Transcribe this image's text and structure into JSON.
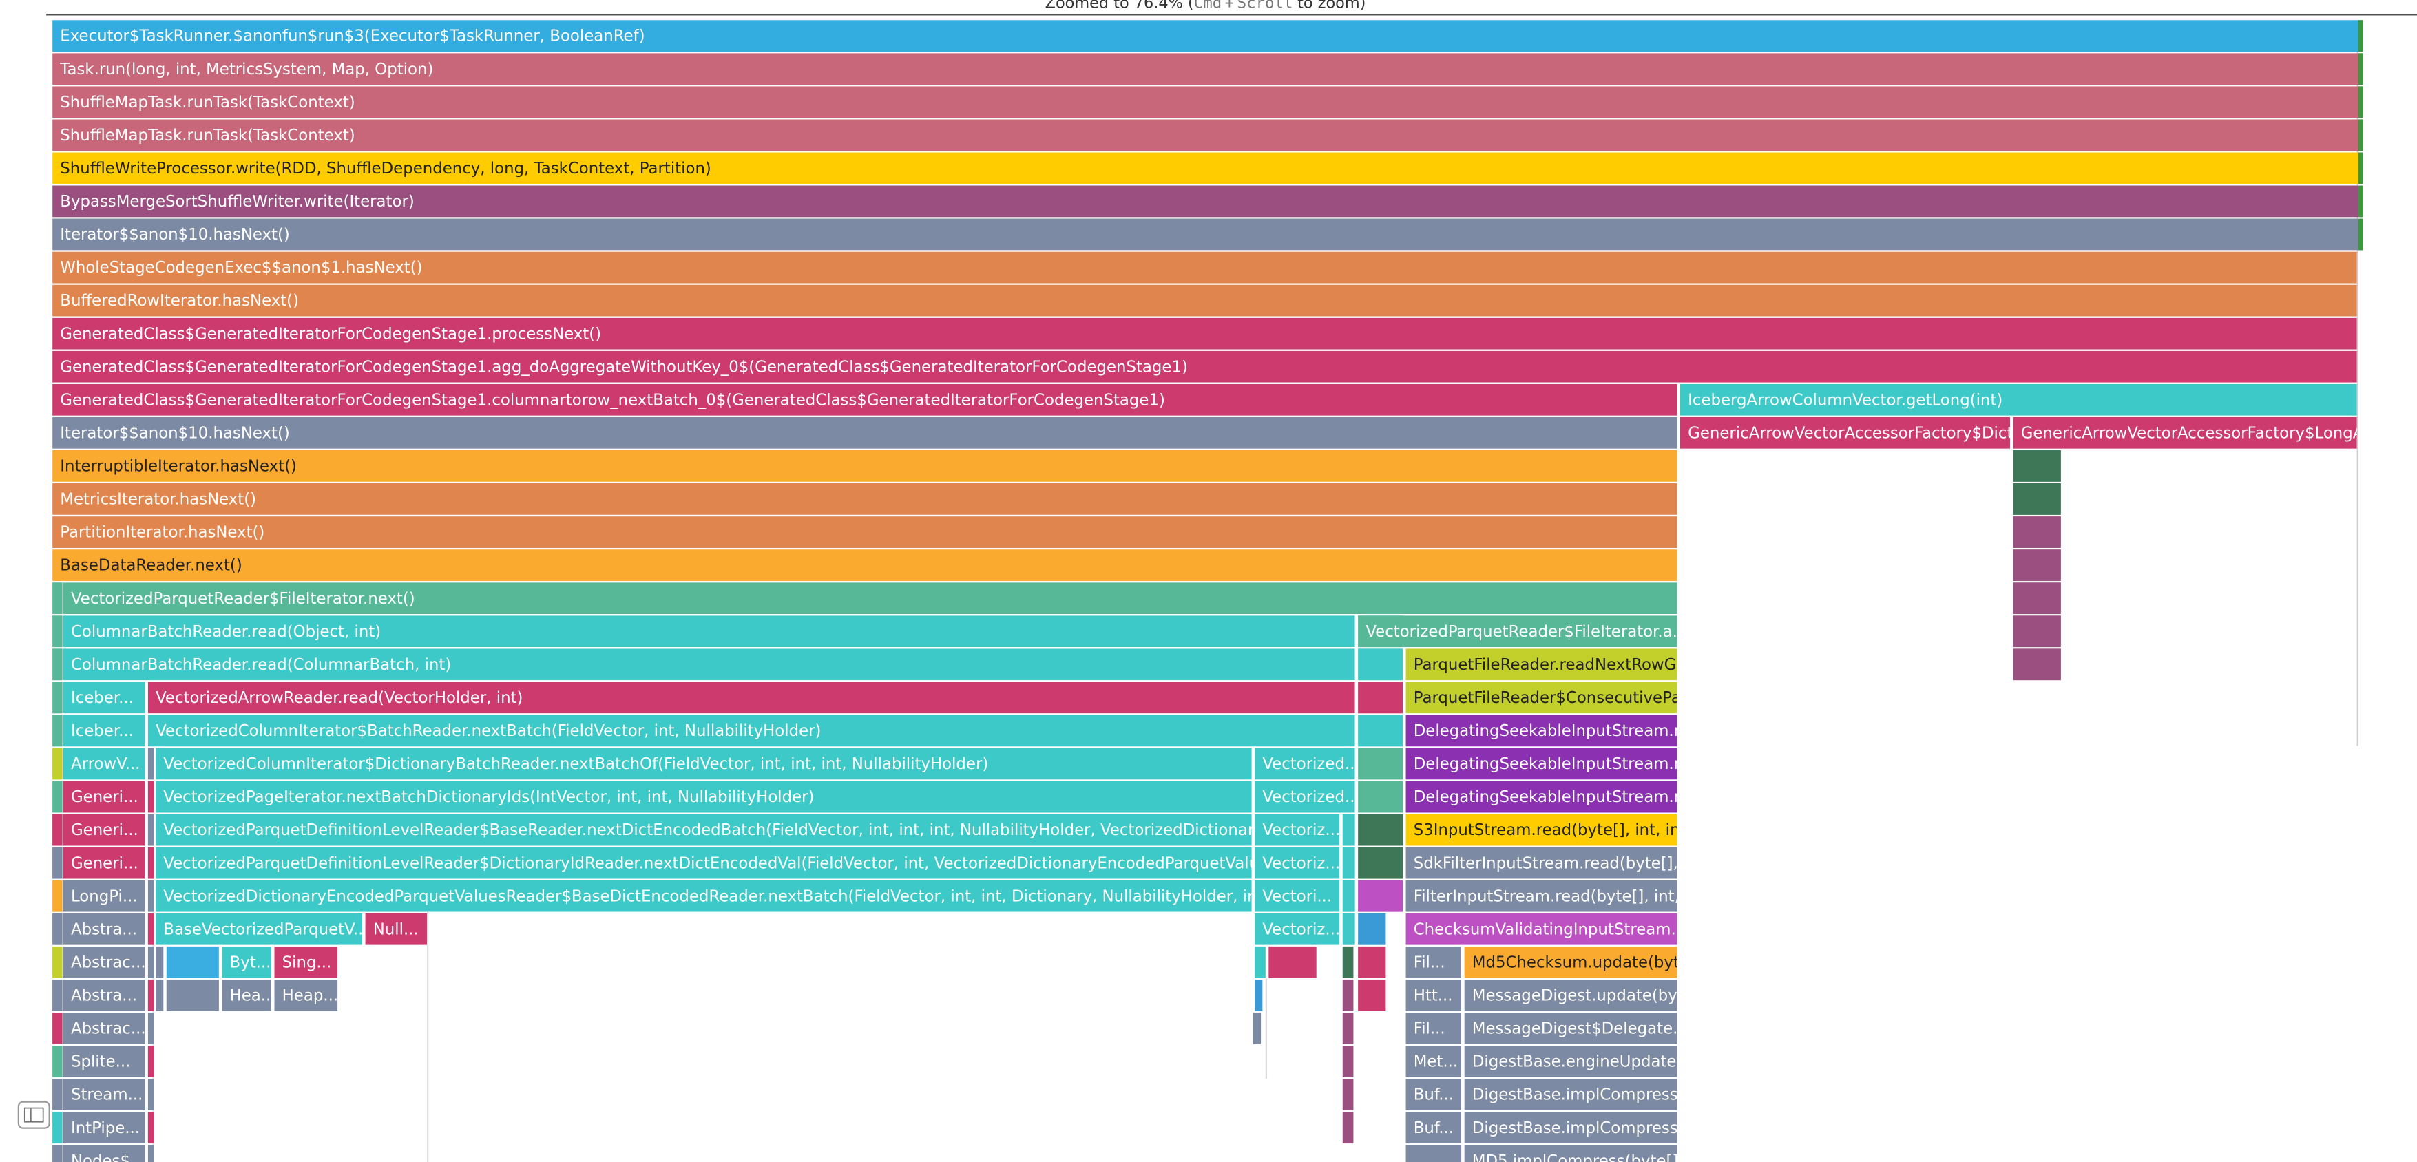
{
  "header": {
    "zoom_text": {
      "before": "Zoomed to 76.4% (",
      "key1": "Cmd",
      "plus": "+",
      "key2": "Scroll",
      "after": "to zoom)"
    }
  },
  "frames": [
    "Executor$TaskRunner.$anonfun$run$3(Executor$TaskRunner, BooleanRef)",
    "Task.run(long, int, MetricsSystem, Map, Option)",
    "ShuffleMapTask.runTask(TaskContext)",
    "ShuffleMapTask.runTask(TaskContext)",
    "ShuffleWriteProcessor.write(RDD, ShuffleDependency, long, TaskContext, Partition)",
    "BypassMergeSortShuffleWriter.write(Iterator)",
    "Iterator$$anon$10.hasNext()",
    "WholeStageCodegenExec$$anon$1.hasNext()",
    "BufferedRowIterator.hasNext()",
    "GeneratedClass$GeneratedIteratorForCodegenStage1.processNext()",
    "GeneratedClass$GeneratedIteratorForCodegenStage1.agg_doAggregateWithoutKey_0$(GeneratedClass$GeneratedIteratorForCodegenStage1)",
    "GeneratedClass$GeneratedIteratorForCodegenStage1.columnartorow_nextBatch_0$(GeneratedClass$GeneratedIteratorForCodegenStage1)",
    "IcebergArrowColumnVector.getLong(int)",
    "Iterator$$anon$10.hasNext()",
    "GenericArrowVectorAccessorFactory$Dicti...",
    "GenericArrowVectorAccessorFactory$LongAc...",
    "InterruptibleIterator.hasNext()",
    "MetricsIterator.hasNext()",
    "PartitionIterator.hasNext()",
    "BaseDataReader.next()",
    "VectorizedParquetReader$FileIterator.next()",
    "ColumnarBatchReader.read(Object, int)",
    "VectorizedParquetReader$FileIterator.a...",
    "ColumnarBatchReader.read(ColumnarBatch, int)",
    "ParquetFileReader.readNextRowG...",
    "Iceber...",
    "VectorizedArrowReader.read(VectorHolder, int)",
    "ParquetFileReader$ConsecutivePa...",
    "Iceber...",
    "VectorizedColumnIterator$BatchReader.nextBatch(FieldVector, int, NullabilityHolder)",
    "DelegatingSeekableInputStream.r...",
    "ArrowV...",
    "VectorizedColumnIterator$DictionaryBatchReader.nextBatchOf(FieldVector, int, int, int, NullabilityHolder)",
    "Vectorized...",
    "DelegatingSeekableInputStream.r...",
    "Generi...",
    "VectorizedPageIterator.nextBatchDictionaryIds(IntVector, int, int, NullabilityHolder)",
    "Vectorized...",
    "DelegatingSeekableInputStream.rea...",
    "Generi...",
    "VectorizedParquetDefinitionLevelReader$BaseReader.nextDictEncodedBatch(FieldVector, int, int, int, NullabilityHolder, VectorizedDictionaryEncodedP...",
    "Vectoriz...",
    "S3InputStream.read(byte[], int, int)",
    "Generi...",
    "VectorizedParquetDefinitionLevelReader$DictionaryIdReader.nextDictEncodedVal(FieldVector, int, VectorizedDictionaryEncodedParquetValuesReader, i...",
    "Vectoriz...",
    "SdkFilterInputStream.read(byte[], i...",
    "LongPi...",
    "VectorizedDictionaryEncodedParquetValuesReader$BaseDictEncodedReader.nextBatch(FieldVector, int, int, Dictionary, NullabilityHolder, int)",
    "Vectori...",
    "FilterInputStream.read(byte[], int,...",
    "Abstra...",
    "BaseVectorizedParquetV...",
    "Null...",
    "Vectoriz...",
    "ChecksumValidatingInputStream.re...",
    "Abstrac...",
    "Byt...",
    "Sing...",
    "Fil...",
    "Md5Checksum.update(byte[...",
    "Abstra...",
    "Hea...",
    "Heap...",
    "Htt...",
    "MessageDigest.update(byte...",
    "Abstrac...",
    "Fil...",
    "MessageDigest$Delegate.e...",
    "Splite...",
    "Met...",
    "DigestBase.engineUpdate(b...",
    "Stream...",
    "Buf...",
    "DigestBase.implCompressMu...",
    "IntPipe...",
    "Buf...",
    "DigestBase.implCompressMu...",
    "Nodes$...",
    "MD5.implCompress(byte[]..."
  ]
}
